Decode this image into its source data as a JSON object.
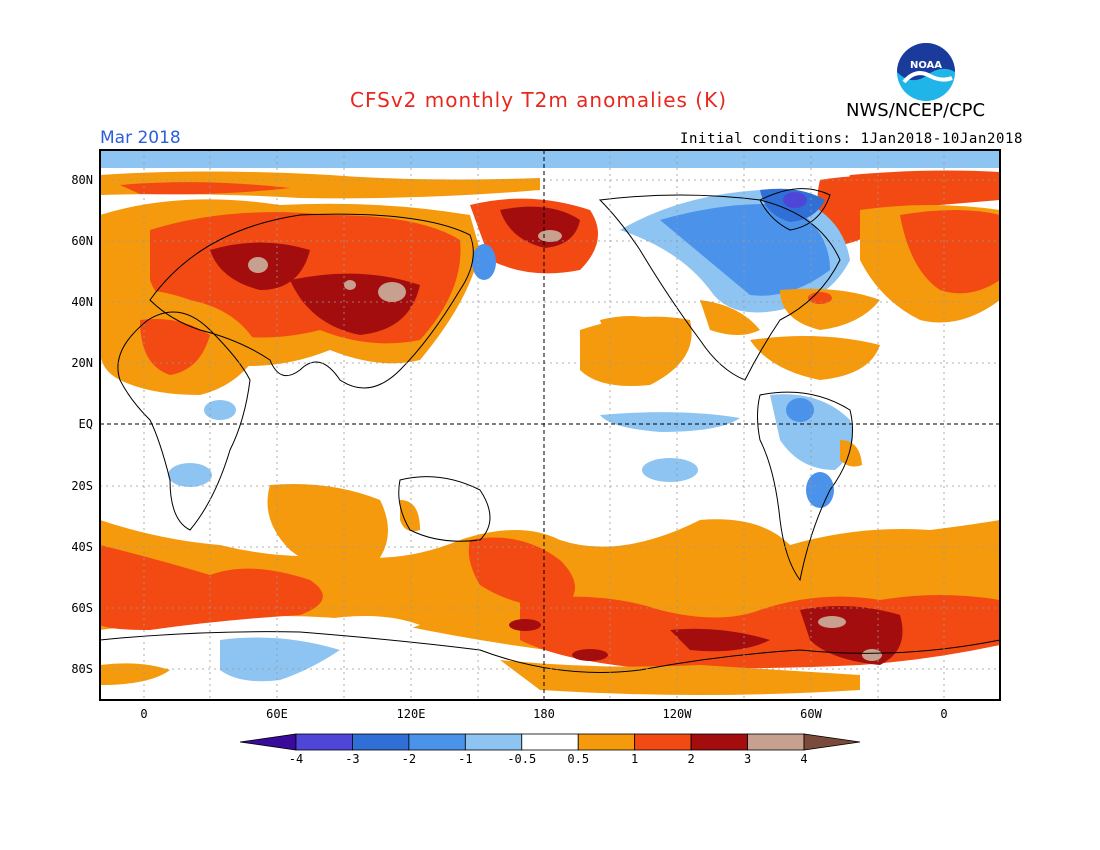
{
  "header": {
    "title": "CFSv2 monthly T2m anomalies (K)",
    "agency": "NWS/NCEP/CPC",
    "logo_text": "NOAA",
    "month": "Mar 2018",
    "initial_conditions": "Initial conditions: 1Jan2018-10Jan2018"
  },
  "map": {
    "lat_labels": [
      "80N",
      "60N",
      "40N",
      "20N",
      "EQ",
      "20S",
      "40S",
      "60S",
      "80S"
    ],
    "lon_labels": [
      "0",
      "60E",
      "120E",
      "180",
      "120W",
      "60W",
      "0"
    ],
    "grid": "dotted",
    "reference_lines": [
      "EQ",
      "180"
    ]
  },
  "colorbar": {
    "labels": [
      "-4",
      "-3",
      "-2",
      "-1",
      "-0.5",
      "0.5",
      "1",
      "2",
      "3",
      "4"
    ],
    "colors": [
      "#3a0a9a",
      "#4f46d8",
      "#2f6fd6",
      "#4a92ea",
      "#8ec4f2",
      "#ffffff",
      "#f59a0c",
      "#f24a12",
      "#a30d0d",
      "#c8a08f",
      "#7a4a3a"
    ]
  },
  "colors": {
    "title": "#e8281f",
    "month": "#2b5fd9",
    "ocean_neutral": "#ffffff",
    "warm1": "#f59a0c",
    "warm2": "#f24a12",
    "warm3": "#a30d0d",
    "warm4": "#c8a08f",
    "cool1": "#8ec4f2",
    "cool2": "#4a92ea",
    "cool3": "#2f6fd6",
    "cool4": "#4f46d8"
  }
}
